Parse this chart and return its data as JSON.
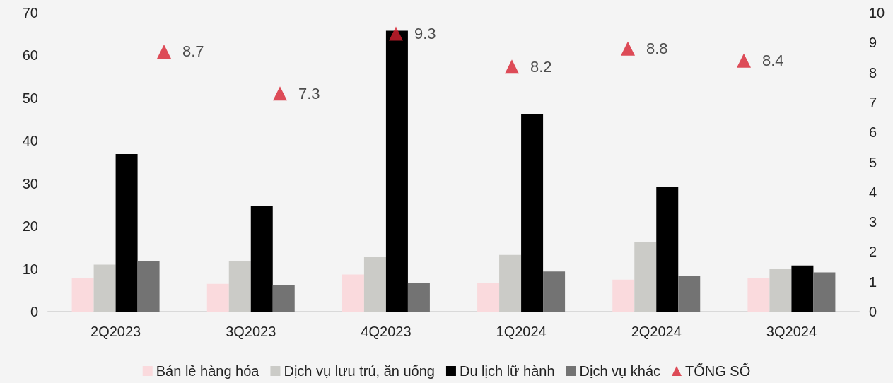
{
  "chart_data": {
    "type": "bar",
    "categories": [
      "2Q2023",
      "3Q2023",
      "4Q2023",
      "1Q2024",
      "2Q2024",
      "3Q2024"
    ],
    "series": [
      {
        "name": "Bán lẻ hàng hóa",
        "color": "#fadadd",
        "values": [
          7.8,
          6.5,
          8.7,
          6.8,
          7.5,
          7.8
        ]
      },
      {
        "name": "Dịch vụ lưu trú, ăn uống",
        "color": "#cbcbc7",
        "values": [
          11.0,
          11.8,
          12.9,
          13.3,
          16.2,
          10.1
        ]
      },
      {
        "name": "Du lịch lữ hành",
        "color": "#000000",
        "values": [
          36.9,
          24.8,
          65.8,
          46.2,
          29.3,
          10.8
        ]
      },
      {
        "name": "Dịch vụ khác",
        "color": "#737373",
        "values": [
          11.8,
          6.2,
          6.8,
          9.4,
          8.3,
          9.2
        ]
      },
      {
        "name": "TỔNG SỐ",
        "type": "scatter",
        "axis": "y2",
        "marker": "triangle",
        "color": "#d7202f",
        "values": [
          8.7,
          7.3,
          9.3,
          8.2,
          8.8,
          8.4
        ],
        "value_labels": [
          "8.7",
          "7.3",
          "9.3",
          "8.2",
          "8.8",
          "8.4"
        ]
      }
    ],
    "ylim": [
      0,
      70
    ],
    "yticks": [
      0,
      10,
      20,
      30,
      40,
      50,
      60,
      70
    ],
    "y2lim": [
      0,
      10
    ],
    "y2ticks": [
      0,
      1,
      2,
      3,
      4,
      5,
      6,
      7,
      8,
      9,
      10
    ],
    "grid": false,
    "legend": "bottom"
  }
}
